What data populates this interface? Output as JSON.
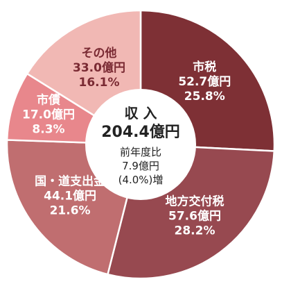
{
  "chart_data": {
    "type": "pie",
    "series": [
      {
        "name": "市税",
        "value_label": "52.7億円",
        "pct_label": "25.8%",
        "value": 52.7,
        "pct": 25.8,
        "color": "#7e3035",
        "text": "light"
      },
      {
        "name": "地方交付税",
        "value_label": "57.6億円",
        "pct_label": "28.2%",
        "value": 57.6,
        "pct": 28.2,
        "color": "#974950",
        "text": "light"
      },
      {
        "name": "国・道支出金",
        "value_label": "44.1億円",
        "pct_label": "21.6%",
        "value": 44.1,
        "pct": 21.6,
        "color": "#c06e70",
        "text": "light"
      },
      {
        "name": "市債",
        "value_label": "17.0億円",
        "pct_label": "8.3%",
        "value": 17.0,
        "pct": 8.3,
        "color": "#e8878c",
        "text": "light"
      },
      {
        "name": "その他",
        "value_label": "33.0億円",
        "pct_label": "16.1%",
        "value": 33.0,
        "pct": 16.1,
        "color": "#f1b8b4",
        "text": "dark"
      }
    ],
    "center": {
      "title": "収 入",
      "total": "204.4億円",
      "line1": "前年度比",
      "line2": "7.9億円",
      "line3": "(4.0%)増"
    }
  }
}
